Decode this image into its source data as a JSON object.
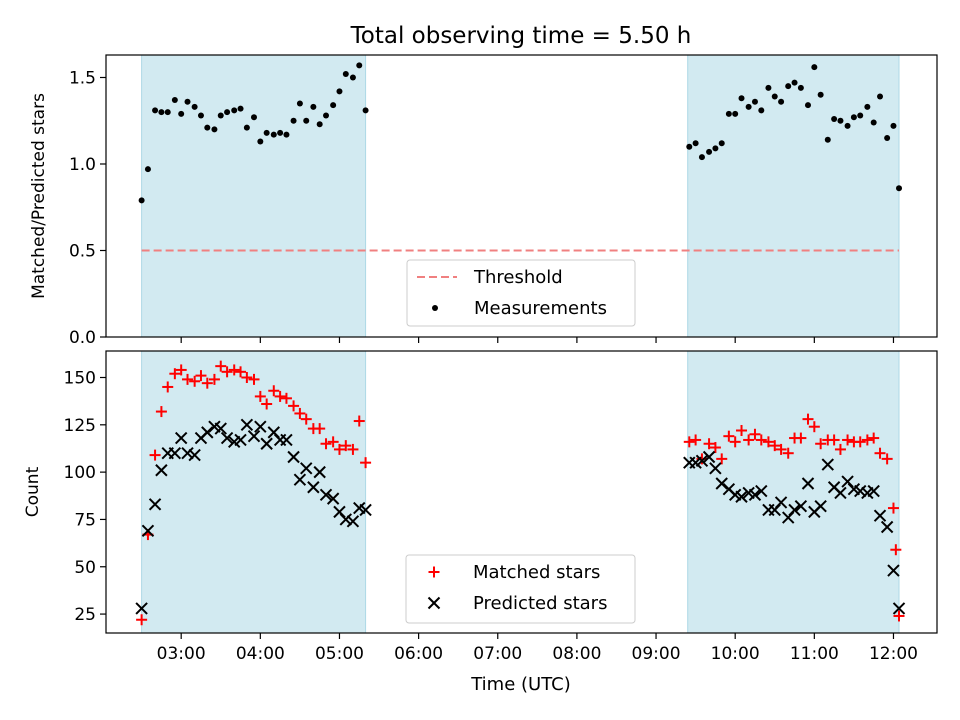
{
  "title": "Total observing time = 5.50 h",
  "xlabel": "Time (UTC)",
  "colors": {
    "shade": "#add8e6",
    "threshold": "#f08080",
    "measurement": "#000000",
    "matched": "#ff0000",
    "predicted": "#000000"
  },
  "chart_data": [
    {
      "type": "scatter",
      "ylabel": "Matched/Predicted stars",
      "x_unit": "hours UTC",
      "xlim": [
        2.05,
        12.55
      ],
      "ylim": [
        0.0,
        1.63
      ],
      "xticks": [
        3,
        4,
        5,
        6,
        7,
        8,
        9,
        10,
        11,
        12
      ],
      "xtick_labels": [],
      "yticks": [
        0.0,
        0.5,
        1.0,
        1.5
      ],
      "ytick_labels": [
        "0.0",
        "0.5",
        "1.0",
        "1.5"
      ],
      "shaded_intervals": [
        [
          2.5,
          5.33
        ],
        [
          9.4,
          12.07
        ]
      ],
      "threshold": {
        "name": "Threshold",
        "value": 0.5,
        "x_range": [
          2.5,
          12.07
        ]
      },
      "legend": {
        "placement": "lower center",
        "entries": [
          "Threshold",
          "Measurements"
        ]
      },
      "series": [
        {
          "name": "Measurements",
          "points": [
            [
              2.5,
              0.79
            ],
            [
              2.58,
              0.97
            ],
            [
              2.67,
              1.31
            ],
            [
              2.75,
              1.3
            ],
            [
              2.83,
              1.3
            ],
            [
              2.92,
              1.37
            ],
            [
              3.0,
              1.29
            ],
            [
              3.08,
              1.36
            ],
            [
              3.17,
              1.33
            ],
            [
              3.25,
              1.28
            ],
            [
              3.33,
              1.21
            ],
            [
              3.42,
              1.2
            ],
            [
              3.5,
              1.28
            ],
            [
              3.58,
              1.3
            ],
            [
              3.67,
              1.31
            ],
            [
              3.75,
              1.32
            ],
            [
              3.83,
              1.21
            ],
            [
              3.92,
              1.27
            ],
            [
              4.0,
              1.13
            ],
            [
              4.08,
              1.18
            ],
            [
              4.17,
              1.17
            ],
            [
              4.25,
              1.18
            ],
            [
              4.33,
              1.17
            ],
            [
              4.42,
              1.25
            ],
            [
              4.5,
              1.35
            ],
            [
              4.58,
              1.25
            ],
            [
              4.67,
              1.33
            ],
            [
              4.75,
              1.23
            ],
            [
              4.83,
              1.28
            ],
            [
              4.92,
              1.34
            ],
            [
              5.0,
              1.42
            ],
            [
              5.08,
              1.52
            ],
            [
              5.17,
              1.5
            ],
            [
              5.25,
              1.57
            ],
            [
              5.33,
              1.31
            ],
            [
              9.42,
              1.1
            ],
            [
              9.5,
              1.12
            ],
            [
              9.58,
              1.04
            ],
            [
              9.67,
              1.07
            ],
            [
              9.75,
              1.09
            ],
            [
              9.83,
              1.12
            ],
            [
              9.92,
              1.29
            ],
            [
              10.0,
              1.29
            ],
            [
              10.08,
              1.38
            ],
            [
              10.17,
              1.33
            ],
            [
              10.25,
              1.36
            ],
            [
              10.33,
              1.31
            ],
            [
              10.42,
              1.44
            ],
            [
              10.5,
              1.39
            ],
            [
              10.58,
              1.36
            ],
            [
              10.67,
              1.45
            ],
            [
              10.75,
              1.47
            ],
            [
              10.83,
              1.44
            ],
            [
              10.92,
              1.34
            ],
            [
              11.0,
              1.56
            ],
            [
              11.08,
              1.4
            ],
            [
              11.17,
              1.14
            ],
            [
              11.25,
              1.26
            ],
            [
              11.33,
              1.25
            ],
            [
              11.42,
              1.22
            ],
            [
              11.5,
              1.27
            ],
            [
              11.58,
              1.28
            ],
            [
              11.67,
              1.33
            ],
            [
              11.75,
              1.24
            ],
            [
              11.83,
              1.39
            ],
            [
              11.92,
              1.15
            ],
            [
              12.0,
              1.22
            ],
            [
              12.07,
              0.86
            ]
          ]
        }
      ]
    },
    {
      "type": "scatter",
      "ylabel": "Count",
      "x_unit": "hours UTC",
      "xlim": [
        2.05,
        12.55
      ],
      "ylim": [
        15,
        164
      ],
      "xticks": [
        3,
        4,
        5,
        6,
        7,
        8,
        9,
        10,
        11,
        12
      ],
      "xtick_labels": [
        "03:00",
        "04:00",
        "05:00",
        "06:00",
        "07:00",
        "08:00",
        "09:00",
        "10:00",
        "11:00",
        "12:00"
      ],
      "yticks": [
        25,
        50,
        75,
        100,
        125,
        150
      ],
      "ytick_labels": [
        "25",
        "50",
        "75",
        "100",
        "125",
        "150"
      ],
      "shaded_intervals": [
        [
          2.5,
          5.33
        ],
        [
          9.4,
          12.07
        ]
      ],
      "legend": {
        "placement": "lower center",
        "entries": [
          "Matched stars",
          "Predicted stars"
        ]
      },
      "series": [
        {
          "name": "Matched stars",
          "marker": "+",
          "points": [
            [
              2.5,
              22
            ],
            [
              2.58,
              67
            ],
            [
              2.67,
              109
            ],
            [
              2.75,
              132
            ],
            [
              2.83,
              145
            ],
            [
              2.92,
              152
            ],
            [
              3.0,
              154
            ],
            [
              3.08,
              149
            ],
            [
              3.17,
              148
            ],
            [
              3.25,
              151
            ],
            [
              3.33,
              147
            ],
            [
              3.42,
              149
            ],
            [
              3.5,
              156
            ],
            [
              3.58,
              153
            ],
            [
              3.67,
              154
            ],
            [
              3.75,
              153
            ],
            [
              3.83,
              150
            ],
            [
              3.92,
              149
            ],
            [
              4.0,
              140
            ],
            [
              4.08,
              136
            ],
            [
              4.17,
              143
            ],
            [
              4.25,
              140
            ],
            [
              4.33,
              139
            ],
            [
              4.42,
              135
            ],
            [
              4.5,
              131
            ],
            [
              4.58,
              128
            ],
            [
              4.67,
              123
            ],
            [
              4.75,
              123
            ],
            [
              4.83,
              115
            ],
            [
              4.92,
              116
            ],
            [
              5.0,
              112
            ],
            [
              5.08,
              114
            ],
            [
              5.17,
              112
            ],
            [
              5.25,
              127
            ],
            [
              5.33,
              105
            ],
            [
              9.42,
              116
            ],
            [
              9.5,
              117
            ],
            [
              9.58,
              107
            ],
            [
              9.67,
              115
            ],
            [
              9.75,
              113
            ],
            [
              9.83,
              107
            ],
            [
              9.92,
              119
            ],
            [
              10.0,
              116
            ],
            [
              10.08,
              122
            ],
            [
              10.17,
              117
            ],
            [
              10.25,
              120
            ],
            [
              10.33,
              117
            ],
            [
              10.42,
              116
            ],
            [
              10.5,
              114
            ],
            [
              10.58,
              112
            ],
            [
              10.67,
              110
            ],
            [
              10.75,
              118
            ],
            [
              10.83,
              118
            ],
            [
              10.92,
              128
            ],
            [
              11.0,
              124
            ],
            [
              11.08,
              115
            ],
            [
              11.17,
              117
            ],
            [
              11.25,
              117
            ],
            [
              11.33,
              112
            ],
            [
              11.42,
              117
            ],
            [
              11.5,
              116
            ],
            [
              11.58,
              116
            ],
            [
              11.67,
              117
            ],
            [
              11.75,
              118
            ],
            [
              11.83,
              110
            ],
            [
              11.92,
              107
            ],
            [
              12.0,
              81
            ],
            [
              12.03,
              59
            ],
            [
              12.07,
              24
            ]
          ]
        },
        {
          "name": "Predicted stars",
          "marker": "x",
          "points": [
            [
              2.5,
              28
            ],
            [
              2.58,
              69
            ],
            [
              2.67,
              83
            ],
            [
              2.75,
              101
            ],
            [
              2.83,
              110
            ],
            [
              2.92,
              110
            ],
            [
              3.0,
              118
            ],
            [
              3.08,
              110
            ],
            [
              3.17,
              109
            ],
            [
              3.25,
              118
            ],
            [
              3.33,
              121
            ],
            [
              3.42,
              124
            ],
            [
              3.5,
              123
            ],
            [
              3.58,
              118
            ],
            [
              3.67,
              116
            ],
            [
              3.75,
              117
            ],
            [
              3.83,
              125
            ],
            [
              3.92,
              119
            ],
            [
              4.0,
              124
            ],
            [
              4.08,
              115
            ],
            [
              4.17,
              121
            ],
            [
              4.25,
              117
            ],
            [
              4.33,
              117
            ],
            [
              4.42,
              108
            ],
            [
              4.5,
              96
            ],
            [
              4.58,
              102
            ],
            [
              4.67,
              92
            ],
            [
              4.75,
              100
            ],
            [
              4.83,
              88
            ],
            [
              4.92,
              86
            ],
            [
              5.0,
              79
            ],
            [
              5.08,
              75
            ],
            [
              5.17,
              74
            ],
            [
              5.25,
              81
            ],
            [
              5.33,
              80
            ],
            [
              9.42,
              105
            ],
            [
              9.5,
              105
            ],
            [
              9.58,
              106
            ],
            [
              9.67,
              108
            ],
            [
              9.75,
              102
            ],
            [
              9.83,
              94
            ],
            [
              9.92,
              91
            ],
            [
              10.0,
              88
            ],
            [
              10.08,
              87
            ],
            [
              10.17,
              89
            ],
            [
              10.25,
              88
            ],
            [
              10.33,
              90
            ],
            [
              10.42,
              80
            ],
            [
              10.5,
              80
            ],
            [
              10.58,
              84
            ],
            [
              10.67,
              76
            ],
            [
              10.75,
              80
            ],
            [
              10.83,
              82
            ],
            [
              10.92,
              94
            ],
            [
              11.0,
              79
            ],
            [
              11.08,
              82
            ],
            [
              11.17,
              104
            ],
            [
              11.25,
              92
            ],
            [
              11.33,
              89
            ],
            [
              11.42,
              95
            ],
            [
              11.5,
              91
            ],
            [
              11.58,
              90
            ],
            [
              11.67,
              89
            ],
            [
              11.75,
              90
            ],
            [
              11.83,
              77
            ],
            [
              11.92,
              71
            ],
            [
              12.0,
              48
            ],
            [
              12.07,
              28
            ]
          ]
        }
      ]
    }
  ]
}
